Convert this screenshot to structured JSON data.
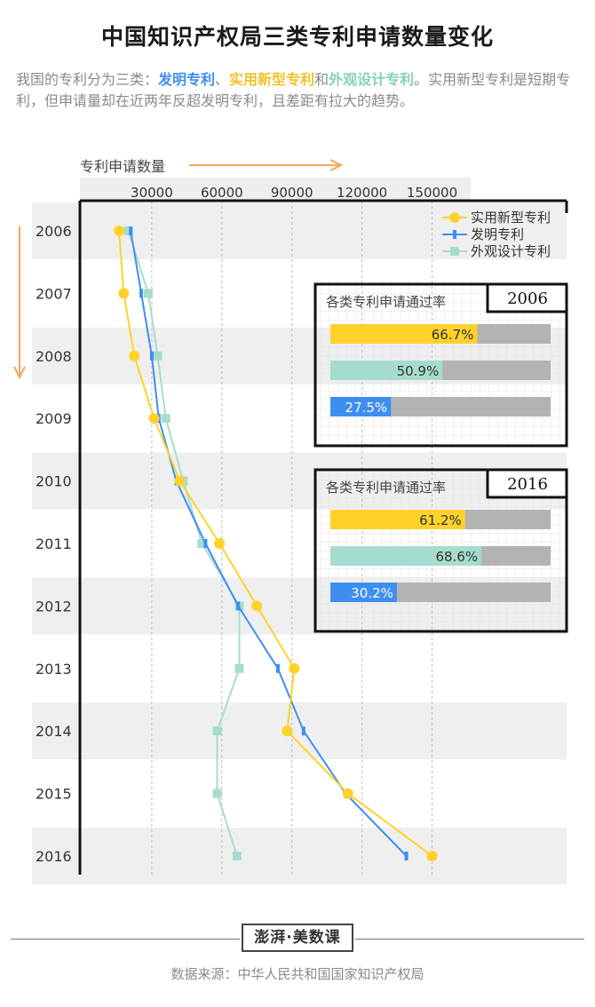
{
  "title": "中国知识产权局三类专利申请数量变化",
  "subtitle": {
    "p1": "我国的专利分为三类：",
    "invention": "发明专利",
    "sep1": "、",
    "utility": "实用新型专利",
    "sep2": "和",
    "design": "外观设计专利",
    "p2": "。实用新型专利是短期专利，但申请量却在近两年反超发明专利，且差距有拉大的趋势。"
  },
  "colors": {
    "utility": "#ffd12a",
    "invention": "#3e8ef2",
    "design": "#a6dccf",
    "bar_bg": "#b3b3b3",
    "arrow": "#f5a65b"
  },
  "chart_data": {
    "type": "line",
    "orientation": "vertical",
    "xlabel": "专利申请数量",
    "x_ticks": [
      30000,
      60000,
      90000,
      120000,
      150000
    ],
    "xlim": [
      0,
      170000
    ],
    "years": [
      "2006",
      "2007",
      "2008",
      "2009",
      "2010",
      "2011",
      "2012",
      "2013",
      "2014",
      "2015",
      "2016"
    ],
    "series": [
      {
        "name": "实用新型专利",
        "key": "utility",
        "marker": "circle",
        "values": [
          16000,
          18000,
          22500,
          31000,
          42000,
          59000,
          75000,
          91000,
          88000,
          114000,
          150000
        ]
      },
      {
        "name": "发明专利",
        "key": "invention",
        "marker": "bar",
        "values": [
          21000,
          25500,
          30000,
          33000,
          40500,
          53000,
          67000,
          84000,
          95000,
          113000,
          139000
        ]
      },
      {
        "name": "外观设计专利",
        "key": "design",
        "marker": "square",
        "values": [
          20000,
          28500,
          32500,
          36000,
          43500,
          51500,
          67500,
          67500,
          58000,
          58000,
          66500
        ]
      }
    ],
    "legend_position": "top-right",
    "insets": [
      {
        "title": "各类专利申请通过率",
        "year": "2006",
        "bars": [
          {
            "key": "utility",
            "value": 66.7,
            "label": "66.7%"
          },
          {
            "key": "design",
            "value": 50.9,
            "label": "50.9%"
          },
          {
            "key": "invention",
            "value": 27.5,
            "label": "27.5%"
          }
        ]
      },
      {
        "title": "各类专利申请通过率",
        "year": "2016",
        "bars": [
          {
            "key": "utility",
            "value": 61.2,
            "label": "61.2%"
          },
          {
            "key": "design",
            "value": 68.6,
            "label": "68.6%"
          },
          {
            "key": "invention",
            "value": 30.2,
            "label": "30.2%"
          }
        ]
      }
    ]
  },
  "footer": {
    "logo": "澎湃·美数课",
    "source": "数据来源：中华人民共和国国家知识产权局"
  }
}
